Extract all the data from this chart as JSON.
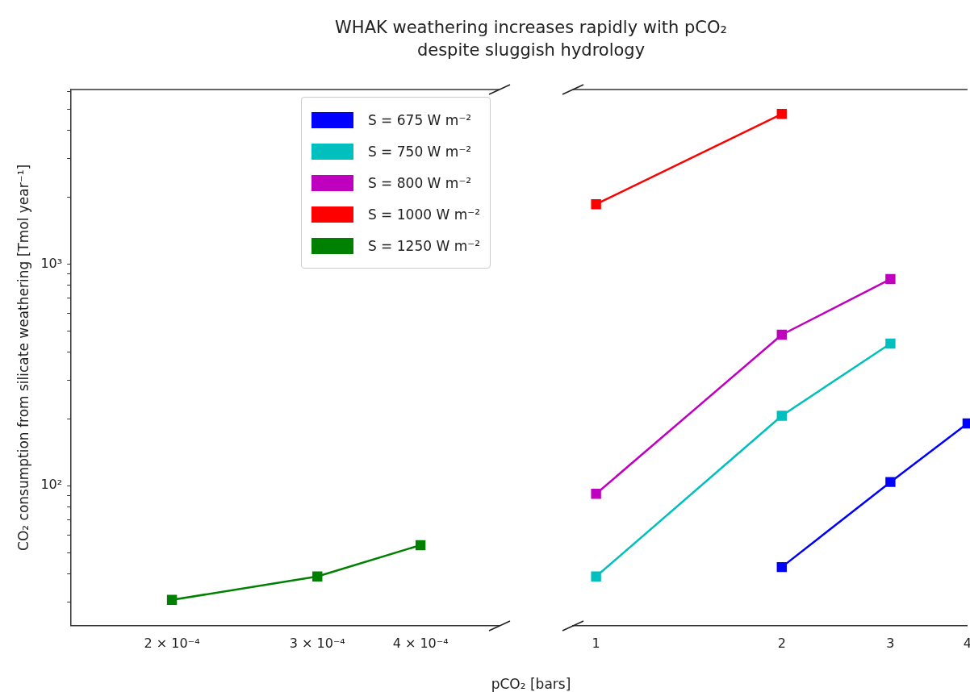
{
  "chart_data": [
    {
      "type": "line",
      "title": "WHAK weathering increases rapidly with pCO₂",
      "subtitle": "despite sluggish hydrology",
      "xlabel": "pCO₂ [bars]",
      "ylabel": "CO₂ consumption from silicate weathering [Tmol year⁻¹]",
      "log": "xy",
      "marker": "square",
      "legend": "top right",
      "xlim": [
        0.000151,
        0.000498
      ],
      "xticks": [
        {
          "value": 0.0002,
          "label": "2 × 10⁻⁴"
        },
        {
          "value": 0.0003,
          "label": "3 × 10⁻⁴"
        },
        {
          "value": 0.0004,
          "label": "4 × 10⁻⁴"
        }
      ],
      "ylim": [
        23.4,
        6120
      ],
      "yticks": [
        {
          "value": 30,
          "label": null
        },
        {
          "value": 40,
          "label": null
        },
        {
          "value": 50,
          "label": null
        },
        {
          "value": 60,
          "label": null
        },
        {
          "value": 70,
          "label": null
        },
        {
          "value": 80,
          "label": null
        },
        {
          "value": 90,
          "label": null
        },
        {
          "value": 100,
          "label": "10²"
        },
        {
          "value": 200,
          "label": null
        },
        {
          "value": 300,
          "label": null
        },
        {
          "value": 400,
          "label": null
        },
        {
          "value": 500,
          "label": null
        },
        {
          "value": 600,
          "label": null
        },
        {
          "value": 700,
          "label": null
        },
        {
          "value": 800,
          "label": null
        },
        {
          "value": 900,
          "label": null
        },
        {
          "value": 1000,
          "label": "10³"
        },
        {
          "value": 2000,
          "label": null
        },
        {
          "value": 3000,
          "label": null
        },
        {
          "value": 4000,
          "label": null
        },
        {
          "value": 5000,
          "label": null
        },
        {
          "value": 6000,
          "label": null
        }
      ],
      "series": [
        {
          "name": "S = 675 W m⁻²",
          "color": "#0000ff"
        },
        {
          "name": "S = 750 W m⁻²",
          "color": "#00bfbf"
        },
        {
          "name": "S = 800 W m⁻²",
          "color": "#bf00bf"
        },
        {
          "name": "S = 1000 W m⁻²",
          "color": "#ff0000"
        },
        {
          "name": "S = 1250 W m⁻²",
          "color": "#008000",
          "x": [
            0.0002,
            0.0003,
            0.0004
          ],
          "values": [
            30.6,
            39,
            54
          ]
        }
      ]
    },
    {
      "type": "line",
      "log": "xy",
      "marker": "square",
      "tick_labels": "x",
      "xlim": [
        0.916,
        4.0
      ],
      "xticks": [
        1,
        2,
        3,
        4
      ],
      "ylim": [
        23.4,
        6120
      ],
      "series": [
        {
          "color": "#0000ff",
          "x": [
            2,
            3,
            4
          ],
          "values": [
            43,
            104,
            191
          ]
        },
        {
          "color": "#00bfbf",
          "x": [
            1,
            2,
            3
          ],
          "values": [
            39,
            207,
            438
          ]
        },
        {
          "color": "#bf00bf",
          "x": [
            1,
            2,
            3
          ],
          "values": [
            92,
            480,
            855
          ]
        },
        {
          "color": "#ff0000",
          "x": [
            1,
            2
          ],
          "values": [
            1860,
            4750
          ]
        }
      ]
    }
  ]
}
